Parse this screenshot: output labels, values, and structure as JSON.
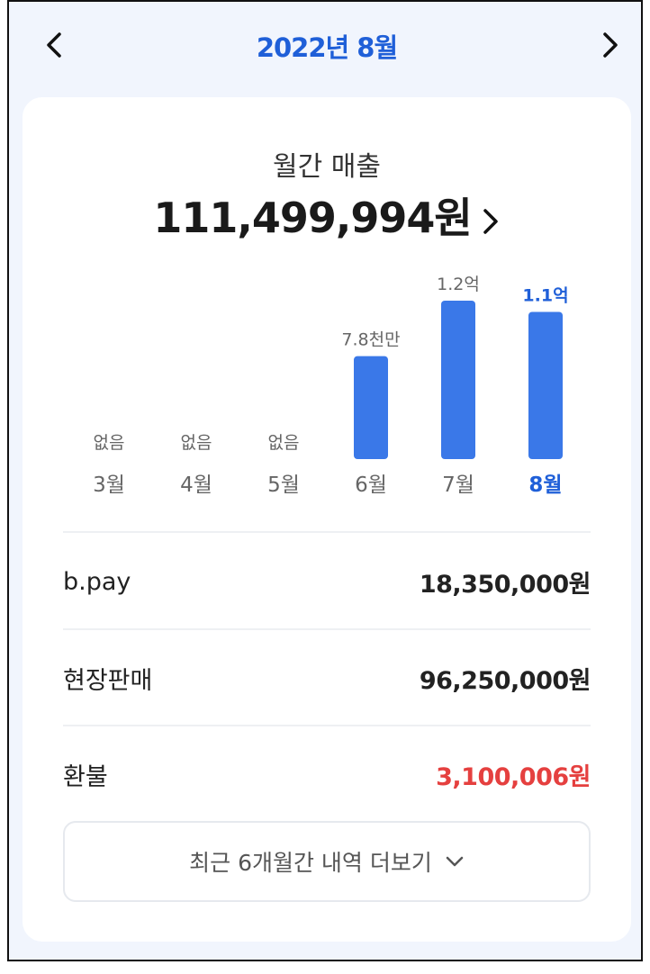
{
  "header": {
    "title": "2022년 8월",
    "prev_icon": "chevron-left-icon",
    "next_icon": "chevron-right-icon"
  },
  "summary": {
    "label": "월간 매출",
    "total": "111,499,994원"
  },
  "colors": {
    "accent": "#1f5fd8",
    "bar": "#3a78e8",
    "refund": "#e5403f"
  },
  "chart_data": {
    "type": "bar",
    "categories": [
      "3월",
      "4월",
      "5월",
      "6월",
      "7월",
      "8월"
    ],
    "values": [
      0,
      0,
      0,
      78000000,
      120000000,
      111499994
    ],
    "data_labels": [
      "없음",
      "없음",
      "없음",
      "7.8천만",
      "1.2억",
      "1.1억"
    ],
    "highlighted": "8월"
  },
  "breakdown": [
    {
      "label": "b.pay",
      "value": "18,350,000원"
    },
    {
      "label": "현장판매",
      "value": "96,250,000원"
    },
    {
      "label": "환불",
      "value": "3,100,006원",
      "negative": true
    }
  ],
  "more_button": {
    "label": "최근 6개월간 내역 더보기"
  }
}
